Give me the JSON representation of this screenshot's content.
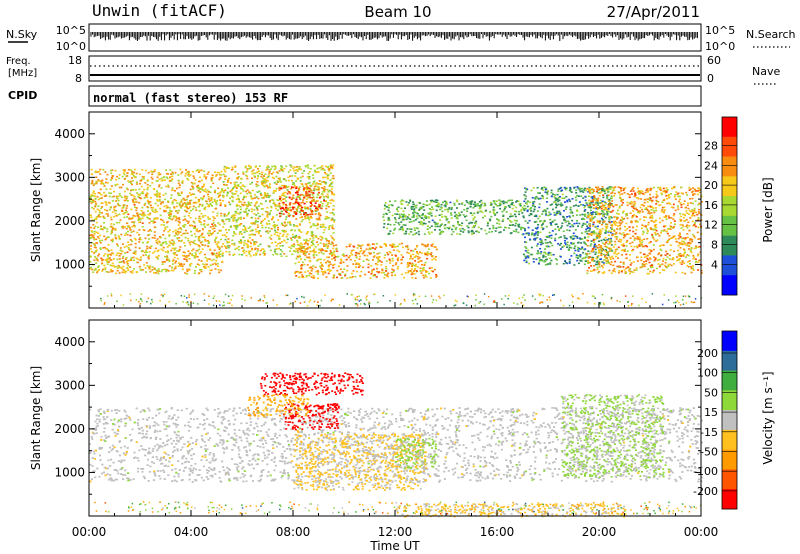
{
  "header": {
    "station": "Unwin (fitACF)",
    "beam": "Beam 10",
    "date": "27/Apr/2011"
  },
  "noise_panel": {
    "left_label": "N.Sky",
    "left_ticks": [
      "10^5",
      "10^0"
    ],
    "right_label": "N.Search",
    "right_ticks": [
      "10^5",
      "10^0"
    ]
  },
  "freq_panel": {
    "left_label_1": "Freq.",
    "left_label_2": "[MHz]",
    "left_ticks": [
      "18",
      "8"
    ],
    "right_label": "Nave",
    "right_ticks": [
      "60",
      "0"
    ]
  },
  "cpid_panel": {
    "label": "CPID",
    "text": "normal (fast stereo) 153 RF"
  },
  "power_panel": {
    "ylabel": "Slant Range [km]",
    "yticks": [
      "4000",
      "3000",
      "2000",
      "1000"
    ],
    "colorbar_label": "Power [dB]",
    "colorbar_ticks": [
      "28",
      "24",
      "20",
      "16",
      "12",
      "8",
      "4"
    ]
  },
  "velocity_panel": {
    "ylabel": "Slant Range [km]",
    "yticks": [
      "4000",
      "3000",
      "2000",
      "1000"
    ],
    "colorbar_label": "Velocity [m s⁻¹]",
    "colorbar_ticks": [
      "200",
      "100",
      "50",
      "15",
      "-15",
      "-50",
      "-100",
      "-200"
    ]
  },
  "x_axis": {
    "label": "Time UT",
    "ticks": [
      "00:00",
      "04:00",
      "08:00",
      "12:00",
      "16:00",
      "20:00",
      "00:00"
    ]
  },
  "colors": {
    "power_scale": [
      "#0000ff",
      "#1e4fd8",
      "#2f8a5a",
      "#66c244",
      "#a8d832",
      "#f6c81a",
      "#f78c10",
      "#ff4a08",
      "#ff0000"
    ],
    "velocity_scale": [
      "#ff0000",
      "#ff5500",
      "#ff9a00",
      "#ffc020",
      "#c0c0c0",
      "#8ed83a",
      "#3fae3f",
      "#2d6d9a",
      "#0000ff"
    ]
  },
  "chart_data": [
    {
      "type": "heatmap",
      "title": "Power",
      "xlabel": "Time UT",
      "ylabel": "Slant Range [km]",
      "x_range_hours": [
        0,
        24
      ],
      "ylim": [
        0,
        4500
      ],
      "colorbar": {
        "label": "Power [dB]",
        "range": [
          0,
          32
        ],
        "ticks": [
          4,
          8,
          12,
          16,
          20,
          24,
          28
        ]
      },
      "scatter_regions": [
        {
          "t_start": 0.0,
          "t_end": 5.2,
          "r_min": 800,
          "r_max": 3200,
          "level": 20
        },
        {
          "t_start": 5.2,
          "t_end": 9.6,
          "r_min": 1200,
          "r_max": 3300,
          "level": 18
        },
        {
          "t_start": 7.4,
          "t_end": 9.2,
          "r_min": 2100,
          "r_max": 2800,
          "level": 26
        },
        {
          "t_start": 8.0,
          "t_end": 13.6,
          "r_min": 700,
          "r_max": 1500,
          "level": 21
        },
        {
          "t_start": 11.5,
          "t_end": 17.0,
          "r_min": 1700,
          "r_max": 2500,
          "level": 12
        },
        {
          "t_start": 17.0,
          "t_end": 20.5,
          "r_min": 1000,
          "r_max": 2800,
          "level": 10
        },
        {
          "t_start": 19.5,
          "t_end": 24.0,
          "r_min": 800,
          "r_max": 2800,
          "level": 21
        }
      ]
    },
    {
      "type": "heatmap",
      "title": "Velocity",
      "xlabel": "Time UT",
      "ylabel": "Slant Range [km]",
      "x_range_hours": [
        0,
        24
      ],
      "ylim": [
        0,
        4500
      ],
      "colorbar": {
        "label": "Velocity [m s⁻¹]",
        "range": [
          -250,
          250
        ],
        "ticks": [
          -200,
          -100,
          -50,
          -15,
          15,
          50,
          100,
          200
        ]
      },
      "scatter_regions": [
        {
          "t_start": 0.0,
          "t_end": 24.0,
          "r_min": 800,
          "r_max": 2500,
          "level": 0
        },
        {
          "t_start": 6.7,
          "t_end": 10.7,
          "r_min": 2800,
          "r_max": 3300,
          "level": -250
        },
        {
          "t_start": 7.6,
          "t_end": 9.8,
          "r_min": 2000,
          "r_max": 2600,
          "level": -250
        },
        {
          "t_start": 6.2,
          "t_end": 8.6,
          "r_min": 2300,
          "r_max": 2800,
          "level": -75
        },
        {
          "t_start": 8.0,
          "t_end": 13.2,
          "r_min": 600,
          "r_max": 1900,
          "level": -40
        },
        {
          "t_start": 12.0,
          "t_end": 13.6,
          "r_min": 1100,
          "r_max": 1800,
          "level": 40
        },
        {
          "t_start": 18.5,
          "t_end": 22.5,
          "r_min": 900,
          "r_max": 2800,
          "level": 35
        },
        {
          "t_start": 12.0,
          "t_end": 21.0,
          "r_min": 0,
          "r_max": 300,
          "level": -40
        }
      ]
    }
  ]
}
